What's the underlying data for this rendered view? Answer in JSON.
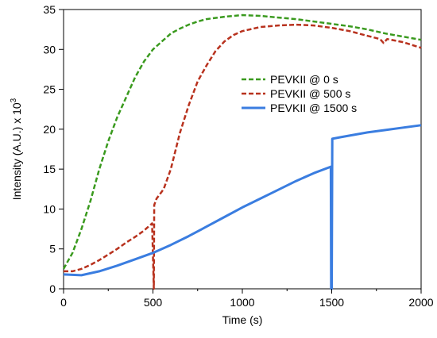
{
  "chart_data": {
    "type": "line",
    "xlabel": "Time (s)",
    "ylabel": "Intensity (A.U.) x 10",
    "ylabel_superscript": "3",
    "xlim": [
      0,
      2000
    ],
    "ylim": [
      0,
      35
    ],
    "x_ticks": [
      0,
      500,
      1000,
      1500,
      2000
    ],
    "y_ticks": [
      0,
      5,
      10,
      15,
      20,
      25,
      30,
      35
    ],
    "grid": false,
    "legend_position": "center-right",
    "series": [
      {
        "name": "PEVKII @ 0 s",
        "color": "#3a9a1e",
        "dash": "dashed",
        "points": [
          [
            0,
            2.5
          ],
          [
            50,
            4.5
          ],
          [
            100,
            7.5
          ],
          [
            150,
            11
          ],
          [
            200,
            15
          ],
          [
            250,
            18.5
          ],
          [
            300,
            21.5
          ],
          [
            350,
            24
          ],
          [
            400,
            26.5
          ],
          [
            450,
            28.5
          ],
          [
            500,
            30
          ],
          [
            550,
            31
          ],
          [
            600,
            32
          ],
          [
            650,
            32.6
          ],
          [
            700,
            33.1
          ],
          [
            750,
            33.5
          ],
          [
            800,
            33.8
          ],
          [
            900,
            34.1
          ],
          [
            1000,
            34.3
          ],
          [
            1100,
            34.2
          ],
          [
            1200,
            34.0
          ],
          [
            1300,
            33.8
          ],
          [
            1400,
            33.5
          ],
          [
            1500,
            33.2
          ],
          [
            1600,
            32.9
          ],
          [
            1700,
            32.5
          ],
          [
            1800,
            32.0
          ],
          [
            1900,
            31.6
          ],
          [
            2000,
            31.2
          ]
        ]
      },
      {
        "name": "PEVKII @ 500 s",
        "color": "#b8321e",
        "dash": "dashed",
        "points": [
          [
            0,
            2.2
          ],
          [
            50,
            2.2
          ],
          [
            100,
            2.5
          ],
          [
            150,
            3.0
          ],
          [
            200,
            3.6
          ],
          [
            250,
            4.3
          ],
          [
            300,
            5.0
          ],
          [
            350,
            5.8
          ],
          [
            400,
            6.5
          ],
          [
            450,
            7.3
          ],
          [
            495,
            8.2
          ],
          [
            505,
            0
          ],
          [
            507,
            10.5
          ],
          [
            520,
            11.3
          ],
          [
            560,
            12.5
          ],
          [
            600,
            15
          ],
          [
            650,
            19.5
          ],
          [
            700,
            23
          ],
          [
            750,
            26
          ],
          [
            800,
            28
          ],
          [
            850,
            29.8
          ],
          [
            900,
            31
          ],
          [
            950,
            31.8
          ],
          [
            1000,
            32.3
          ],
          [
            1100,
            32.8
          ],
          [
            1200,
            33.0
          ],
          [
            1300,
            33.1
          ],
          [
            1400,
            33.0
          ],
          [
            1500,
            32.7
          ],
          [
            1600,
            32.3
          ],
          [
            1700,
            31.7
          ],
          [
            1770,
            31.3
          ],
          [
            1790,
            30.8
          ],
          [
            1810,
            31.3
          ],
          [
            1900,
            30.9
          ],
          [
            2000,
            30.2
          ]
        ]
      },
      {
        "name": "PEVKII @ 1500 s",
        "color": "#3a7de0",
        "dash": "solid",
        "points": [
          [
            0,
            1.8
          ],
          [
            100,
            1.7
          ],
          [
            200,
            2.2
          ],
          [
            300,
            2.9
          ],
          [
            400,
            3.7
          ],
          [
            500,
            4.5
          ],
          [
            600,
            5.5
          ],
          [
            700,
            6.6
          ],
          [
            800,
            7.8
          ],
          [
            900,
            9.0
          ],
          [
            1000,
            10.2
          ],
          [
            1100,
            11.3
          ],
          [
            1200,
            12.4
          ],
          [
            1300,
            13.5
          ],
          [
            1400,
            14.5
          ],
          [
            1495,
            15.3
          ],
          [
            1497,
            0
          ],
          [
            1500,
            0
          ],
          [
            1503,
            18.8
          ],
          [
            1550,
            19.0
          ],
          [
            1600,
            19.2
          ],
          [
            1700,
            19.6
          ],
          [
            1800,
            19.9
          ],
          [
            1900,
            20.2
          ],
          [
            2000,
            20.5
          ]
        ]
      }
    ]
  }
}
